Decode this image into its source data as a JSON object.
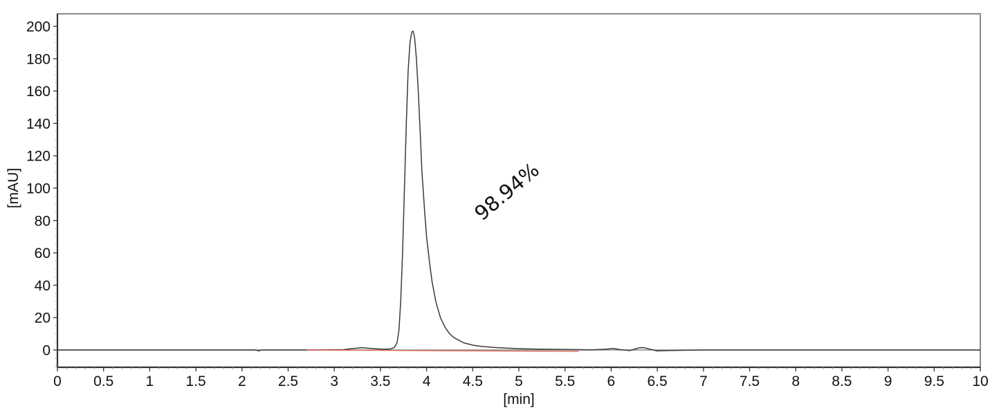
{
  "chart_data": {
    "type": "line",
    "title": "",
    "xlabel": "[min]",
    "ylabel": "[mAU]",
    "xlim": [
      0,
      10
    ],
    "ylim": [
      -10.8,
      209
    ],
    "x_ticks": [
      "0",
      "0.5",
      "1",
      "1.5",
      "2",
      "2.5",
      "3",
      "3.5",
      "4",
      "4.5",
      "5",
      "5.5",
      "6",
      "6.5",
      "7",
      "7.5",
      "8",
      "8.5",
      "9",
      "9.5",
      "10"
    ],
    "y_ticks": [
      "0",
      "20",
      "40",
      "60",
      "80",
      "100",
      "120",
      "140",
      "160",
      "180",
      "200"
    ],
    "grid": false,
    "legend": null,
    "series": [
      {
        "name": "chromatogram",
        "color": "#3a3a3a",
        "x": [
          0,
          2.15,
          2.18,
          2.21,
          2.7,
          3.1,
          3.2,
          3.3,
          3.4,
          3.5,
          3.6,
          3.65,
          3.68,
          3.7,
          3.72,
          3.74,
          3.76,
          3.78,
          3.8,
          3.82,
          3.84,
          3.855,
          3.87,
          3.89,
          3.91,
          3.93,
          3.95,
          3.98,
          4.0,
          4.03,
          4.06,
          4.1,
          4.15,
          4.2,
          4.25,
          4.3,
          4.4,
          4.5,
          4.6,
          4.75,
          5.0,
          5.2,
          5.5,
          5.8,
          5.95,
          6.02,
          6.1,
          6.2,
          6.3,
          6.35,
          6.42,
          6.5,
          6.6,
          6.75,
          7.0,
          8.0,
          9.0,
          10.0
        ],
        "y": [
          0,
          0,
          -0.6,
          0,
          0,
          0.2,
          0.9,
          1.4,
          1.0,
          0.5,
          0.5,
          1.5,
          4.5,
          12,
          30,
          60,
          100,
          140,
          172,
          190,
          196.5,
          197,
          193,
          180,
          160,
          135,
          110,
          85,
          70,
          55,
          42,
          30,
          20,
          14,
          10,
          7.5,
          4.5,
          3,
          2.2,
          1.5,
          0.8,
          0.5,
          0.3,
          0.1,
          0.5,
          1.0,
          0.2,
          -0.4,
          1.3,
          1.5,
          0.5,
          -0.6,
          -0.4,
          -0.2,
          0,
          0,
          0,
          0
        ]
      },
      {
        "name": "integration-baseline",
        "color": "#e06a5a",
        "x": [
          2.7,
          5.65
        ],
        "y": [
          0,
          -0.9
        ]
      }
    ],
    "peaks": [
      {
        "retention_time_min": 3.855,
        "height_mAU": 197,
        "area_percent": "98.94%"
      }
    ],
    "annotations": [
      {
        "text": "98.94%",
        "x": 4.6,
        "y": 82,
        "rotation_deg": -40
      }
    ]
  },
  "labels": {
    "xlabel": "[min]",
    "ylabel": "[mAU]",
    "annotation": "98.94%"
  }
}
